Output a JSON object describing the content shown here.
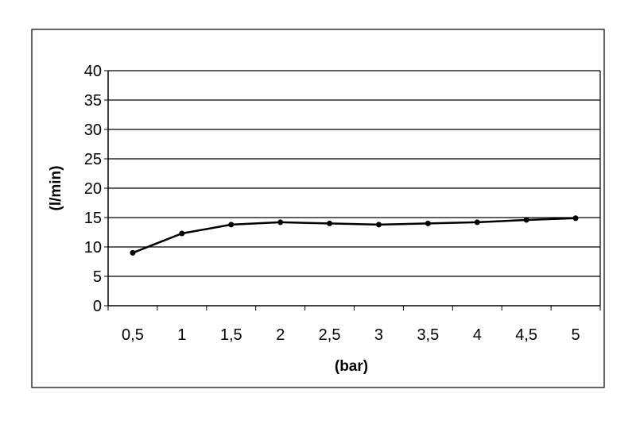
{
  "chart_data": {
    "type": "line",
    "title": "",
    "xlabel": "(bar)",
    "ylabel": "(l/min)",
    "categories": [
      "0,5",
      "1",
      "1,5",
      "2",
      "2,5",
      "3",
      "3,5",
      "4",
      "4,5",
      "5"
    ],
    "series": [
      {
        "values": [
          9.0,
          12.3,
          13.8,
          14.2,
          14.0,
          13.8,
          14.0,
          14.2,
          14.6,
          14.9
        ]
      }
    ],
    "ylim": [
      0,
      40
    ],
    "yticks": [
      "0",
      "5",
      "10",
      "15",
      "20",
      "25",
      "30",
      "35",
      "40"
    ],
    "grid": "horizontal",
    "legend": "none",
    "colors": {
      "line": "#000000",
      "grid": "#000000"
    }
  }
}
